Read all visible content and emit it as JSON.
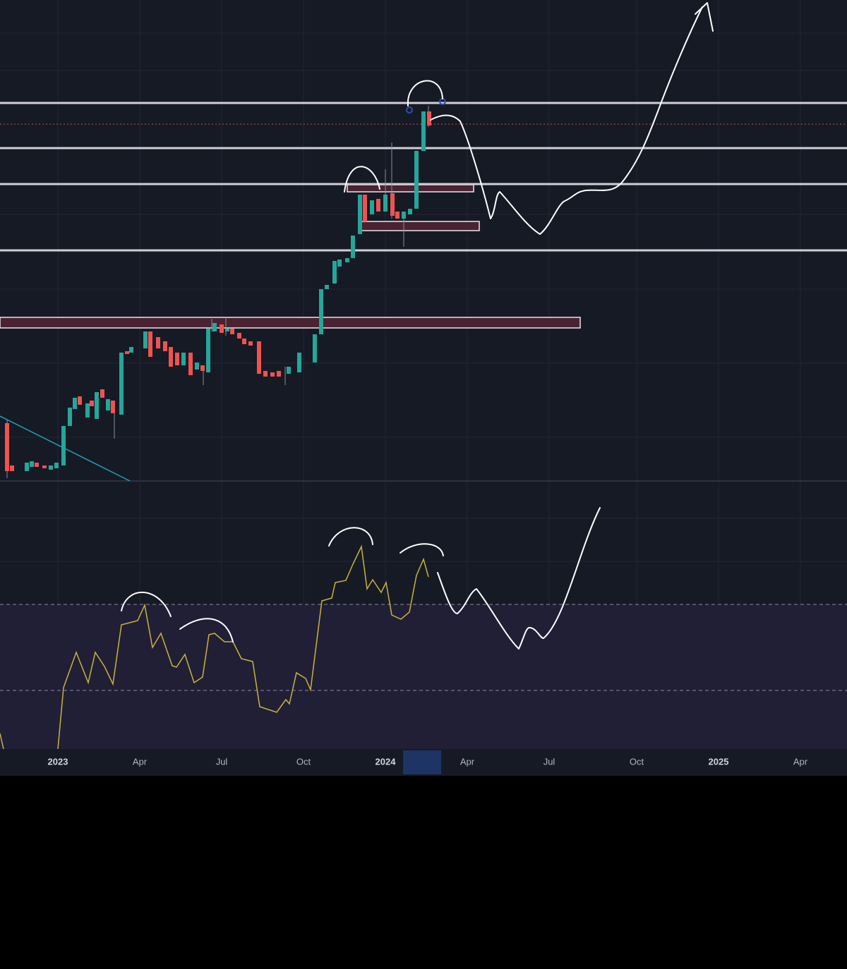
{
  "time_axis": {
    "labels": [
      "2023",
      "Apr",
      "Jul",
      "Oct",
      "2024",
      "Apr",
      "Jul",
      "Oct",
      "2025",
      "Apr"
    ]
  }
}
